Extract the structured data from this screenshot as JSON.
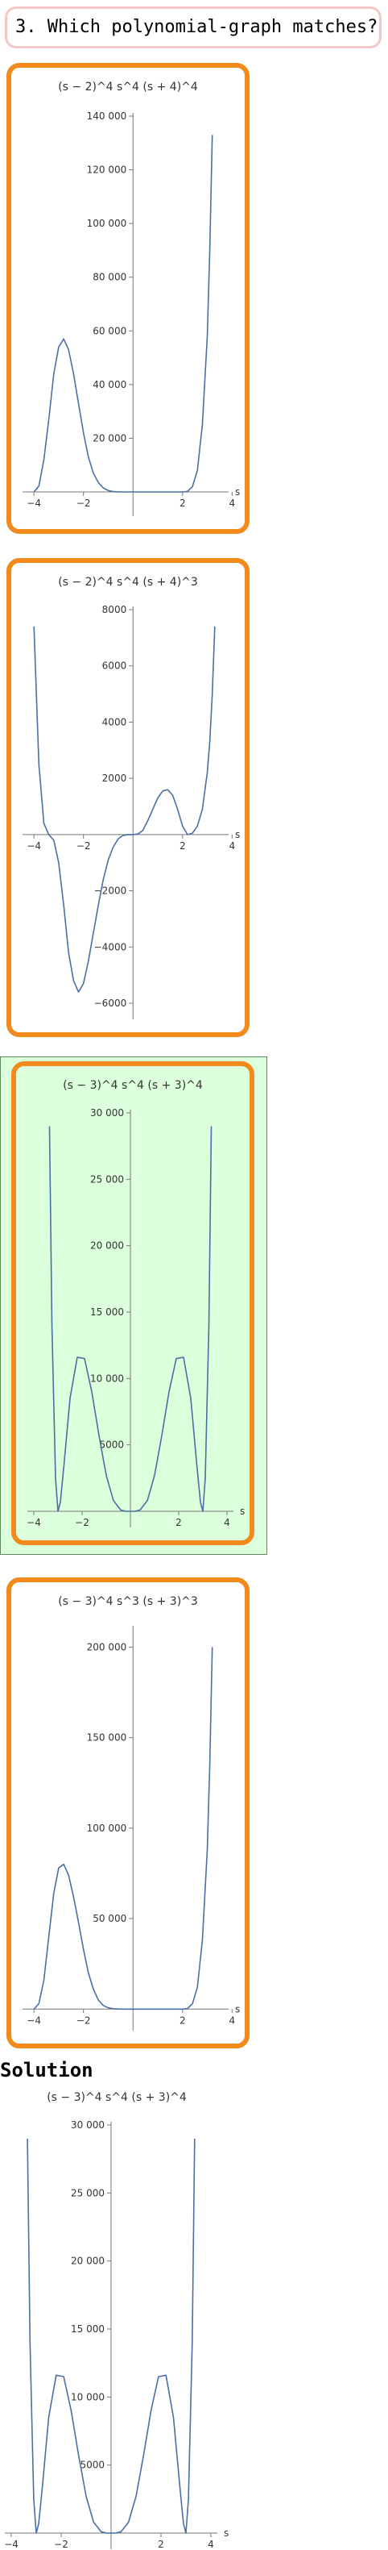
{
  "question": {
    "text": "3. Which polynomial-graph matches?"
  },
  "solution": {
    "heading": "Solution"
  },
  "colors": {
    "choice_border": "#f28a1c",
    "selected_bg": "#dcffdc",
    "curve": "#4a6fa5",
    "question_border": "#f4c6c6"
  },
  "chart_data": [
    {
      "id": "choice-1",
      "type": "line",
      "title_parts": [
        [
          "(s",
          "−",
          "2)",
          "4"
        ],
        [
          "s",
          "4"
        ],
        [
          "(s",
          "+",
          "4)",
          "4"
        ]
      ],
      "title": "(s − 2)^4 s^4 (s + 4)^4",
      "xlabel": "s",
      "xlim": [
        -4.2,
        3.6
      ],
      "ylim": [
        -3000,
        140000
      ],
      "x_ticks": [
        -4,
        -2,
        2,
        4
      ],
      "y_ticks": [
        20000,
        40000,
        60000,
        80000,
        100000,
        120000,
        140000
      ],
      "tick_labels_y": [
        "20 000",
        "40 000",
        "60 000",
        "80 000",
        "100 000",
        "120 000",
        "140 000"
      ],
      "tick_labels_x": [
        "−4",
        "−2",
        "2",
        "4"
      ],
      "series": [
        {
          "x": [
            -4.0,
            -3.8,
            -3.6,
            -3.4,
            -3.2,
            -3.0,
            -2.8,
            -2.6,
            -2.4,
            -2.2,
            -2.0,
            -1.8,
            -1.6,
            -1.4,
            -1.2,
            -1.0,
            -0.8,
            -0.6,
            -0.4,
            -0.2,
            0.0,
            0.4,
            0.8,
            1.2,
            1.6,
            2.0,
            2.2,
            2.4,
            2.6,
            2.8,
            3.0,
            3.1,
            3.2
          ],
          "y": [
            0,
            2200,
            12000,
            27000,
            44000,
            54000,
            57000,
            53000,
            44000,
            33000,
            22000,
            13000,
            7000,
            3500,
            1500,
            500,
            150,
            30,
            5,
            0,
            0,
            0,
            0,
            0,
            0,
            0,
            200,
            2000,
            8000,
            25000,
            58000,
            90000,
            133000
          ]
        }
      ]
    },
    {
      "id": "choice-2",
      "type": "line",
      "title": "(s − 2)^4 s^4 (s + 4)^3",
      "xlabel": "s",
      "xlim": [
        -4.2,
        3.6
      ],
      "ylim": [
        -6000,
        8000
      ],
      "x_ticks": [
        -4,
        -2,
        2,
        4
      ],
      "tick_labels_x": [
        "−4",
        "−2",
        "2",
        "4"
      ],
      "y_ticks": [
        -6000,
        -4000,
        -2000,
        2000,
        4000,
        6000,
        8000
      ],
      "tick_labels_y": [
        "−6000",
        "−4000",
        "−2000",
        "2000",
        "4000",
        "6000",
        "8000"
      ],
      "series": [
        {
          "x": [
            -4.0,
            -3.8,
            -3.6,
            -3.4,
            -3.2,
            -3.0,
            -2.8,
            -2.6,
            -2.4,
            -2.2,
            -2.0,
            -1.8,
            -1.6,
            -1.4,
            -1.2,
            -1.0,
            -0.8,
            -0.6,
            -0.4,
            -0.2,
            0.0,
            0.2,
            0.4,
            0.6,
            0.8,
            1.0,
            1.2,
            1.4,
            1.6,
            1.8,
            2.0,
            2.2,
            2.4,
            2.6,
            2.8,
            3.0,
            3.1,
            3.2,
            3.3
          ],
          "y": [
            7400,
            2500,
            400,
            0,
            -200,
            -1000,
            -2500,
            -4200,
            -5200,
            -5600,
            -5300,
            -4500,
            -3500,
            -2500,
            -1600,
            -900,
            -450,
            -150,
            -30,
            0,
            0,
            20,
            150,
            500,
            900,
            1300,
            1550,
            1600,
            1400,
            900,
            300,
            0,
            50,
            300,
            900,
            2200,
            3300,
            5000,
            7400
          ]
        }
      ]
    },
    {
      "id": "choice-3",
      "type": "line",
      "title": "(s − 3)^4 s^4 (s + 3)^4",
      "xlabel": "s",
      "xlim": [
        -4.0,
        4.0
      ],
      "ylim": [
        0,
        30000
      ],
      "x_ticks": [
        -4,
        -2,
        2,
        4
      ],
      "tick_labels_x": [
        "−4",
        "−2",
        "2",
        "4"
      ],
      "y_ticks": [
        5000,
        10000,
        15000,
        20000,
        25000,
        30000
      ],
      "tick_labels_y": [
        "5000",
        "10 000",
        "15 000",
        "20 000",
        "25 000",
        "30 000"
      ],
      "series": [
        {
          "x": [
            -3.35,
            -3.25,
            -3.1,
            -3.0,
            -2.9,
            -2.75,
            -2.5,
            -2.2,
            -1.9,
            -1.6,
            -1.3,
            -1.0,
            -0.7,
            -0.4,
            -0.2,
            0.0,
            0.2,
            0.4,
            0.7,
            1.0,
            1.3,
            1.6,
            1.9,
            2.2,
            2.5,
            2.75,
            2.9,
            3.0,
            3.1,
            3.25,
            3.35
          ],
          "y": [
            29000,
            14000,
            2500,
            0,
            700,
            3500,
            8500,
            11600,
            11500,
            9000,
            5700,
            2700,
            800,
            100,
            5,
            0,
            5,
            100,
            800,
            2700,
            5700,
            9000,
            11500,
            11600,
            8500,
            3500,
            700,
            0,
            2500,
            14000,
            29000
          ]
        }
      ]
    },
    {
      "id": "choice-4",
      "type": "line",
      "title": "(s − 3)^4 s^3 (s + 3)^3",
      "xlabel": "s",
      "xlim": [
        -4.2,
        3.6
      ],
      "ylim": [
        -3000,
        210000
      ],
      "x_ticks": [
        -4,
        -2,
        2,
        4
      ],
      "tick_labels_x": [
        "−4",
        "−2",
        "2",
        "4"
      ],
      "y_ticks": [
        50000,
        100000,
        150000,
        200000
      ],
      "tick_labels_y": [
        "50 000",
        "100 000",
        "150 000",
        "200 000"
      ],
      "series": [
        {
          "x": [
            -4.0,
            -3.8,
            -3.6,
            -3.4,
            -3.2,
            -3.0,
            -2.8,
            -2.6,
            -2.4,
            -2.2,
            -2.0,
            -1.8,
            -1.6,
            -1.4,
            -1.2,
            -1.0,
            -0.8,
            -0.6,
            -0.4,
            -0.2,
            0.0,
            0.4,
            0.8,
            1.2,
            1.6,
            2.0,
            2.2,
            2.4,
            2.6,
            2.8,
            3.0,
            3.1,
            3.2
          ],
          "y": [
            0,
            3000,
            16000,
            40000,
            64000,
            78000,
            80000,
            74000,
            62000,
            48000,
            33000,
            20000,
            11000,
            5000,
            2000,
            700,
            200,
            40,
            5,
            0,
            0,
            0,
            0,
            0,
            0,
            0,
            300,
            3000,
            12000,
            38000,
            88000,
            135000,
            200000
          ]
        }
      ]
    },
    {
      "id": "solution",
      "type": "line",
      "title": "(s − 3)^4 s^4 (s + 3)^4",
      "xlabel": "s",
      "xlim": [
        -4.0,
        4.0
      ],
      "ylim": [
        0,
        30000
      ],
      "x_ticks": [
        -4,
        -2,
        2,
        4
      ],
      "tick_labels_x": [
        "−4",
        "−2",
        "2",
        "4"
      ],
      "y_ticks": [
        5000,
        10000,
        15000,
        20000,
        25000,
        30000
      ],
      "tick_labels_y": [
        "5000",
        "10 000",
        "15 000",
        "20 000",
        "25 000",
        "30 000"
      ],
      "series": [
        {
          "x": [
            -3.35,
            -3.25,
            -3.1,
            -3.0,
            -2.9,
            -2.75,
            -2.5,
            -2.2,
            -1.9,
            -1.6,
            -1.3,
            -1.0,
            -0.7,
            -0.4,
            -0.2,
            0.0,
            0.2,
            0.4,
            0.7,
            1.0,
            1.3,
            1.6,
            1.9,
            2.2,
            2.5,
            2.75,
            2.9,
            3.0,
            3.1,
            3.25,
            3.35
          ],
          "y": [
            29000,
            14000,
            2500,
            0,
            700,
            3500,
            8500,
            11600,
            11500,
            9000,
            5700,
            2700,
            800,
            100,
            5,
            0,
            5,
            100,
            800,
            2700,
            5700,
            9000,
            11500,
            11600,
            8500,
            3500,
            700,
            0,
            2500,
            14000,
            29000
          ]
        }
      ]
    }
  ]
}
